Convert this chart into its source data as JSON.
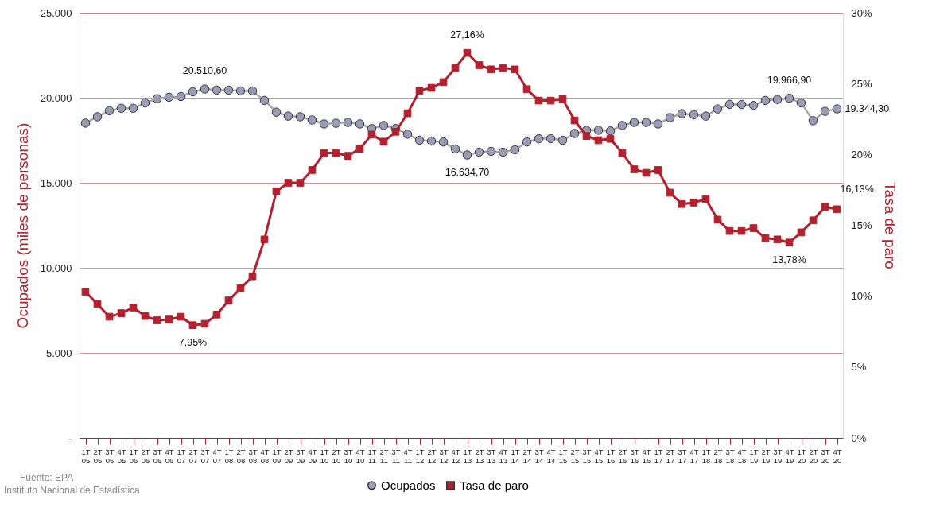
{
  "chart_data": {
    "type": "line",
    "categories": [
      "1T05",
      "2T05",
      "3T05",
      "4T05",
      "1T06",
      "2T06",
      "3T06",
      "4T06",
      "1T07",
      "2T07",
      "3T07",
      "4T07",
      "1T08",
      "2T08",
      "3T08",
      "4T08",
      "1T09",
      "2T09",
      "3T09",
      "4T09",
      "1T10",
      "2T10",
      "3T10",
      "4T10",
      "1T11",
      "2T11",
      "3T11",
      "4T11",
      "1T12",
      "2T12",
      "3T12",
      "4T12",
      "1T13",
      "2T13",
      "3T13",
      "4T13",
      "1T14",
      "2T14",
      "3T14",
      "4T14",
      "1T15",
      "2T15",
      "3T15",
      "4T15",
      "1T16",
      "2T16",
      "3T16",
      "4T16",
      "1T17",
      "2T17",
      "3T17",
      "4T17",
      "1T18",
      "2T18",
      "3T18",
      "4T18",
      "1T19",
      "2T19",
      "3T19",
      "4T19",
      "1T20",
      "2T20",
      "3T20",
      "4T20"
    ],
    "series": [
      {
        "name": "Ocupados",
        "color": "#9b9bb8",
        "axis": "y",
        "marker": "circle",
        "values": [
          18510,
          18880,
          19240,
          19380,
          19380,
          19700,
          19940,
          20030,
          20070,
          20350,
          20510.6,
          20450,
          20440,
          20400,
          20400,
          19840,
          19150,
          18920,
          18880,
          18690,
          18460,
          18500,
          18550,
          18460,
          18190,
          18370,
          18190,
          17860,
          17500,
          17450,
          17400,
          16990,
          16634.7,
          16800,
          16850,
          16800,
          16940,
          17400,
          17590,
          17600,
          17500,
          17900,
          18090,
          18090,
          18050,
          18370,
          18550,
          18550,
          18460,
          18830,
          19060,
          19000,
          18920,
          19340,
          19610,
          19600,
          19550,
          19840,
          19900,
          19966.9,
          19700,
          18650,
          19200,
          19344.3
        ],
        "value_labels": [
          null,
          null,
          null,
          null,
          null,
          null,
          null,
          null,
          null,
          null,
          "20.510,60",
          null,
          null,
          null,
          null,
          null,
          null,
          null,
          null,
          null,
          null,
          null,
          null,
          null,
          null,
          null,
          null,
          null,
          null,
          null,
          null,
          null,
          "16.634,70",
          null,
          null,
          null,
          null,
          null,
          null,
          null,
          null,
          null,
          null,
          null,
          null,
          null,
          null,
          null,
          null,
          null,
          null,
          null,
          null,
          null,
          null,
          null,
          null,
          null,
          null,
          "19.966,90",
          null,
          null,
          null,
          "19.344,30"
        ]
      },
      {
        "name": "Tasa de paro",
        "color": "#b3202e",
        "axis": "y2",
        "marker": "square",
        "values": [
          10.3,
          9.45,
          8.55,
          8.8,
          9.2,
          8.6,
          8.3,
          8.35,
          8.55,
          7.95,
          8.05,
          8.7,
          9.7,
          10.55,
          11.4,
          14.0,
          17.4,
          18.0,
          18.0,
          18.9,
          20.1,
          20.1,
          19.9,
          20.4,
          21.4,
          20.9,
          21.6,
          22.9,
          24.5,
          24.7,
          25.1,
          26.1,
          27.16,
          26.3,
          26.0,
          26.1,
          26.0,
          24.6,
          23.8,
          23.8,
          23.9,
          22.4,
          21.3,
          21.0,
          21.1,
          20.1,
          18.95,
          18.7,
          18.9,
          17.3,
          16.5,
          16.6,
          16.85,
          15.4,
          14.6,
          14.6,
          14.8,
          14.1,
          14.0,
          13.78,
          14.5,
          15.35,
          16.3,
          16.13
        ],
        "value_labels": [
          null,
          null,
          null,
          null,
          null,
          null,
          null,
          null,
          null,
          "7,95%",
          null,
          null,
          null,
          null,
          null,
          null,
          null,
          null,
          null,
          null,
          null,
          null,
          null,
          null,
          null,
          null,
          null,
          null,
          null,
          null,
          null,
          null,
          "27,16%",
          null,
          null,
          null,
          null,
          null,
          null,
          null,
          null,
          null,
          null,
          null,
          null,
          null,
          null,
          null,
          null,
          null,
          null,
          null,
          null,
          null,
          null,
          null,
          null,
          null,
          null,
          "13,78%",
          null,
          null,
          null,
          "16,13%"
        ]
      }
    ],
    "ylabel": "Ocupados (miles de personas)",
    "y2label": "Tasa de paro",
    "ylim": [
      0,
      25000
    ],
    "yticks": [
      {
        "value": 0,
        "label": "-"
      },
      {
        "value": 5000,
        "label": "5.000"
      },
      {
        "value": 10000,
        "label": "10.000"
      },
      {
        "value": 15000,
        "label": "15.000"
      },
      {
        "value": 20000,
        "label": "20.000"
      },
      {
        "value": 25000,
        "label": "25.000"
      }
    ],
    "y2lim": [
      0,
      30
    ],
    "y2ticks": [
      {
        "value": 0,
        "label": "0%"
      },
      {
        "value": 5,
        "label": "5%"
      },
      {
        "value": 10,
        "label": "10%"
      },
      {
        "value": 15,
        "label": "15%"
      },
      {
        "value": 20,
        "label": "20%"
      },
      {
        "value": 25,
        "label": "25%"
      },
      {
        "value": 30,
        "label": "30%"
      }
    ],
    "grid": "y",
    "legend": "bottom",
    "line_style": "solid",
    "annotations": [
      "Fuente:   EPA",
      "Instituto Nacional de Estadística"
    ]
  }
}
